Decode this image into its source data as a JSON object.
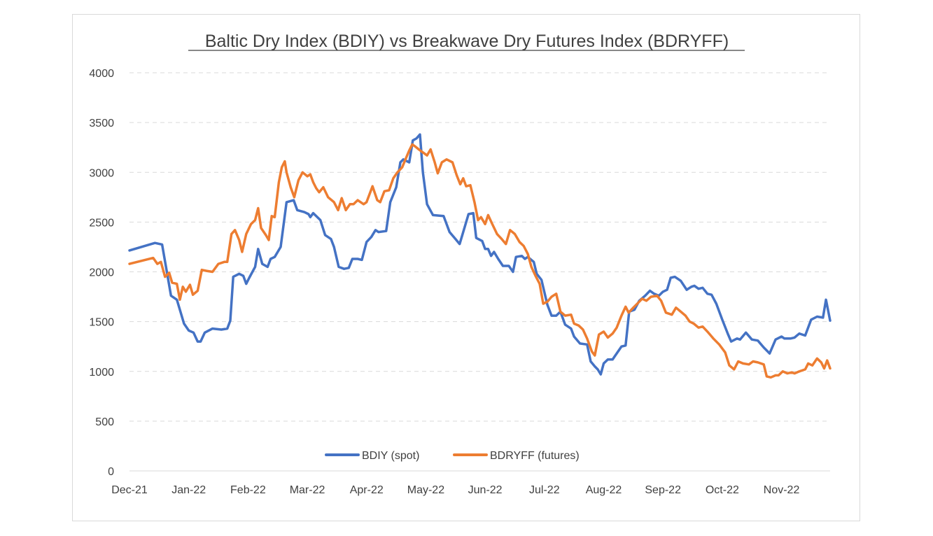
{
  "chart_data": {
    "type": "line",
    "title": "Baltic Dry Index (BDIY) vs Breakwave Dry Futures Index (BDRYFF)",
    "xlabel": "",
    "ylabel": "",
    "ylim": [
      0,
      4000
    ],
    "yticks": [
      0,
      500,
      1000,
      1500,
      2000,
      2500,
      3000,
      3500,
      4000
    ],
    "xtick_labels": [
      "Dec-21",
      "Jan-22",
      "Feb-22",
      "Mar-22",
      "Apr-22",
      "May-22",
      "Jun-22",
      "Jul-22",
      "Aug-22",
      "Sep-22",
      "Oct-22",
      "Nov-22"
    ],
    "x_unit": "months since Dec-21",
    "grid": "horizontal dashed",
    "legend": "bottom-center",
    "series": [
      {
        "name": "BDIY (spot)",
        "color": "#4472c4",
        "points": [
          [
            0.0,
            2215
          ],
          [
            0.43,
            2290
          ],
          [
            0.55,
            2275
          ],
          [
            0.7,
            1760
          ],
          [
            0.8,
            1720
          ],
          [
            0.92,
            1480
          ],
          [
            1.0,
            1410
          ],
          [
            1.08,
            1390
          ],
          [
            1.15,
            1300
          ],
          [
            1.2,
            1300
          ],
          [
            1.27,
            1390
          ],
          [
            1.4,
            1430
          ],
          [
            1.55,
            1420
          ],
          [
            1.65,
            1430
          ],
          [
            1.7,
            1510
          ],
          [
            1.75,
            1950
          ],
          [
            1.85,
            1980
          ],
          [
            1.92,
            1960
          ],
          [
            1.97,
            1880
          ],
          [
            2.02,
            1940
          ],
          [
            2.12,
            2050
          ],
          [
            2.17,
            2230
          ],
          [
            2.24,
            2080
          ],
          [
            2.33,
            2050
          ],
          [
            2.38,
            2130
          ],
          [
            2.45,
            2150
          ],
          [
            2.55,
            2250
          ],
          [
            2.65,
            2700
          ],
          [
            2.77,
            2720
          ],
          [
            2.83,
            2620
          ],
          [
            2.95,
            2600
          ],
          [
            3.02,
            2580
          ],
          [
            3.05,
            2550
          ],
          [
            3.1,
            2590
          ],
          [
            3.22,
            2520
          ],
          [
            3.3,
            2370
          ],
          [
            3.4,
            2330
          ],
          [
            3.45,
            2250
          ],
          [
            3.53,
            2050
          ],
          [
            3.62,
            2030
          ],
          [
            3.7,
            2040
          ],
          [
            3.76,
            2130
          ],
          [
            3.85,
            2130
          ],
          [
            3.92,
            2120
          ],
          [
            4.0,
            2300
          ],
          [
            4.08,
            2350
          ],
          [
            4.15,
            2420
          ],
          [
            4.2,
            2400
          ],
          [
            4.33,
            2410
          ],
          [
            4.4,
            2700
          ],
          [
            4.5,
            2850
          ],
          [
            4.57,
            3100
          ],
          [
            4.62,
            3130
          ],
          [
            4.72,
            3100
          ],
          [
            4.78,
            3320
          ],
          [
            4.84,
            3340
          ],
          [
            4.9,
            3380
          ],
          [
            4.95,
            3000
          ],
          [
            5.02,
            2680
          ],
          [
            5.12,
            2570
          ],
          [
            5.3,
            2560
          ],
          [
            5.4,
            2400
          ],
          [
            5.5,
            2330
          ],
          [
            5.57,
            2280
          ],
          [
            5.63,
            2400
          ],
          [
            5.72,
            2580
          ],
          [
            5.8,
            2590
          ],
          [
            5.85,
            2340
          ],
          [
            5.95,
            2310
          ],
          [
            6.0,
            2230
          ],
          [
            6.05,
            2230
          ],
          [
            6.1,
            2160
          ],
          [
            6.15,
            2200
          ],
          [
            6.22,
            2130
          ],
          [
            6.3,
            2060
          ],
          [
            6.4,
            2060
          ],
          [
            6.47,
            2000
          ],
          [
            6.52,
            2150
          ],
          [
            6.62,
            2160
          ],
          [
            6.67,
            2130
          ],
          [
            6.72,
            2150
          ],
          [
            6.82,
            2100
          ],
          [
            6.87,
            1980
          ],
          [
            6.95,
            1920
          ],
          [
            7.05,
            1670
          ],
          [
            7.12,
            1560
          ],
          [
            7.2,
            1560
          ],
          [
            7.27,
            1600
          ],
          [
            7.35,
            1470
          ],
          [
            7.45,
            1430
          ],
          [
            7.5,
            1350
          ],
          [
            7.6,
            1280
          ],
          [
            7.72,
            1270
          ],
          [
            7.78,
            1100
          ],
          [
            7.85,
            1050
          ],
          [
            7.9,
            1020
          ],
          [
            7.95,
            970
          ],
          [
            8.0,
            1080
          ],
          [
            8.07,
            1120
          ],
          [
            8.15,
            1120
          ],
          [
            8.22,
            1180
          ],
          [
            8.3,
            1250
          ],
          [
            8.37,
            1260
          ],
          [
            8.43,
            1600
          ],
          [
            8.52,
            1620
          ],
          [
            8.6,
            1710
          ],
          [
            8.7,
            1760
          ],
          [
            8.78,
            1810
          ],
          [
            8.85,
            1780
          ],
          [
            8.93,
            1760
          ],
          [
            9.0,
            1800
          ],
          [
            9.07,
            1820
          ],
          [
            9.13,
            1940
          ],
          [
            9.2,
            1950
          ],
          [
            9.3,
            1910
          ],
          [
            9.4,
            1820
          ],
          [
            9.48,
            1850
          ],
          [
            9.53,
            1860
          ],
          [
            9.6,
            1830
          ],
          [
            9.67,
            1840
          ],
          [
            9.75,
            1780
          ],
          [
            9.82,
            1770
          ],
          [
            9.9,
            1680
          ],
          [
            10.0,
            1520
          ],
          [
            10.1,
            1370
          ],
          [
            10.15,
            1300
          ],
          [
            10.25,
            1330
          ],
          [
            10.3,
            1320
          ],
          [
            10.4,
            1390
          ],
          [
            10.5,
            1320
          ],
          [
            10.6,
            1310
          ],
          [
            10.7,
            1240
          ],
          [
            10.8,
            1180
          ],
          [
            10.9,
            1320
          ],
          [
            11.0,
            1350
          ],
          [
            11.05,
            1330
          ],
          [
            11.15,
            1330
          ],
          [
            11.22,
            1340
          ],
          [
            11.3,
            1380
          ],
          [
            11.4,
            1360
          ],
          [
            11.5,
            1520
          ],
          [
            11.6,
            1550
          ],
          [
            11.7,
            1540
          ],
          [
            11.75,
            1720
          ],
          [
            11.82,
            1510
          ]
        ]
      },
      {
        "name": "BDRYFF (futures)",
        "color": "#ed7d31",
        "points": [
          [
            0.0,
            2080
          ],
          [
            0.4,
            2140
          ],
          [
            0.47,
            2080
          ],
          [
            0.53,
            2100
          ],
          [
            0.6,
            1950
          ],
          [
            0.67,
            1990
          ],
          [
            0.72,
            1890
          ],
          [
            0.8,
            1880
          ],
          [
            0.85,
            1720
          ],
          [
            0.9,
            1850
          ],
          [
            0.95,
            1800
          ],
          [
            1.02,
            1870
          ],
          [
            1.07,
            1770
          ],
          [
            1.15,
            1810
          ],
          [
            1.22,
            2020
          ],
          [
            1.3,
            2010
          ],
          [
            1.4,
            2000
          ],
          [
            1.5,
            2080
          ],
          [
            1.6,
            2100
          ],
          [
            1.65,
            2100
          ],
          [
            1.72,
            2380
          ],
          [
            1.78,
            2420
          ],
          [
            1.85,
            2320
          ],
          [
            1.9,
            2200
          ],
          [
            1.97,
            2380
          ],
          [
            2.05,
            2480
          ],
          [
            2.12,
            2520
          ],
          [
            2.17,
            2640
          ],
          [
            2.22,
            2440
          ],
          [
            2.3,
            2370
          ],
          [
            2.35,
            2320
          ],
          [
            2.4,
            2560
          ],
          [
            2.45,
            2550
          ],
          [
            2.52,
            2900
          ],
          [
            2.57,
            3050
          ],
          [
            2.62,
            3110
          ],
          [
            2.65,
            3000
          ],
          [
            2.72,
            2850
          ],
          [
            2.78,
            2750
          ],
          [
            2.85,
            2920
          ],
          [
            2.92,
            3000
          ],
          [
            3.0,
            2960
          ],
          [
            3.05,
            2980
          ],
          [
            3.1,
            2900
          ],
          [
            3.15,
            2840
          ],
          [
            3.2,
            2800
          ],
          [
            3.27,
            2850
          ],
          [
            3.35,
            2750
          ],
          [
            3.45,
            2700
          ],
          [
            3.52,
            2620
          ],
          [
            3.58,
            2740
          ],
          [
            3.65,
            2620
          ],
          [
            3.72,
            2680
          ],
          [
            3.78,
            2680
          ],
          [
            3.85,
            2720
          ],
          [
            3.95,
            2680
          ],
          [
            4.0,
            2700
          ],
          [
            4.1,
            2860
          ],
          [
            4.18,
            2720
          ],
          [
            4.23,
            2700
          ],
          [
            4.3,
            2810
          ],
          [
            4.38,
            2820
          ],
          [
            4.45,
            2940
          ],
          [
            4.52,
            3000
          ],
          [
            4.6,
            3050
          ],
          [
            4.67,
            3150
          ],
          [
            4.72,
            3220
          ],
          [
            4.77,
            3280
          ],
          [
            4.82,
            3260
          ],
          [
            4.88,
            3230
          ],
          [
            4.95,
            3200
          ],
          [
            5.02,
            3170
          ],
          [
            5.08,
            3230
          ],
          [
            5.15,
            3100
          ],
          [
            5.2,
            2990
          ],
          [
            5.27,
            3100
          ],
          [
            5.35,
            3130
          ],
          [
            5.45,
            3100
          ],
          [
            5.52,
            2970
          ],
          [
            5.58,
            2880
          ],
          [
            5.63,
            2940
          ],
          [
            5.68,
            2860
          ],
          [
            5.75,
            2870
          ],
          [
            5.82,
            2700
          ],
          [
            5.88,
            2520
          ],
          [
            5.93,
            2550
          ],
          [
            6.0,
            2480
          ],
          [
            6.05,
            2570
          ],
          [
            6.12,
            2480
          ],
          [
            6.2,
            2380
          ],
          [
            6.28,
            2330
          ],
          [
            6.35,
            2280
          ],
          [
            6.42,
            2420
          ],
          [
            6.5,
            2380
          ],
          [
            6.58,
            2300
          ],
          [
            6.65,
            2260
          ],
          [
            6.72,
            2180
          ],
          [
            6.78,
            2050
          ],
          [
            6.85,
            1960
          ],
          [
            6.92,
            1880
          ],
          [
            6.98,
            1680
          ],
          [
            7.05,
            1700
          ],
          [
            7.12,
            1750
          ],
          [
            7.2,
            1780
          ],
          [
            7.27,
            1600
          ],
          [
            7.35,
            1560
          ],
          [
            7.45,
            1570
          ],
          [
            7.5,
            1480
          ],
          [
            7.58,
            1460
          ],
          [
            7.65,
            1420
          ],
          [
            7.72,
            1330
          ],
          [
            7.8,
            1200
          ],
          [
            7.85,
            1160
          ],
          [
            7.92,
            1370
          ],
          [
            8.0,
            1400
          ],
          [
            8.07,
            1340
          ],
          [
            8.15,
            1380
          ],
          [
            8.22,
            1440
          ],
          [
            8.3,
            1560
          ],
          [
            8.37,
            1650
          ],
          [
            8.42,
            1590
          ],
          [
            8.5,
            1640
          ],
          [
            8.6,
            1700
          ],
          [
            8.65,
            1730
          ],
          [
            8.72,
            1710
          ],
          [
            8.8,
            1750
          ],
          [
            8.9,
            1760
          ],
          [
            8.97,
            1710
          ],
          [
            9.05,
            1590
          ],
          [
            9.15,
            1570
          ],
          [
            9.22,
            1640
          ],
          [
            9.3,
            1600
          ],
          [
            9.38,
            1560
          ],
          [
            9.45,
            1500
          ],
          [
            9.52,
            1480
          ],
          [
            9.6,
            1440
          ],
          [
            9.67,
            1450
          ],
          [
            9.75,
            1400
          ],
          [
            9.85,
            1330
          ],
          [
            9.95,
            1270
          ],
          [
            10.05,
            1190
          ],
          [
            10.12,
            1060
          ],
          [
            10.2,
            1020
          ],
          [
            10.27,
            1100
          ],
          [
            10.35,
            1080
          ],
          [
            10.45,
            1070
          ],
          [
            10.52,
            1100
          ],
          [
            10.6,
            1090
          ],
          [
            10.7,
            1070
          ],
          [
            10.75,
            950
          ],
          [
            10.82,
            940
          ],
          [
            10.9,
            960
          ],
          [
            10.95,
            960
          ],
          [
            11.02,
            1000
          ],
          [
            11.1,
            980
          ],
          [
            11.17,
            990
          ],
          [
            11.22,
            980
          ],
          [
            11.3,
            1000
          ],
          [
            11.4,
            1020
          ],
          [
            11.45,
            1080
          ],
          [
            11.52,
            1060
          ],
          [
            11.6,
            1130
          ],
          [
            11.67,
            1090
          ],
          [
            11.72,
            1030
          ],
          [
            11.77,
            1110
          ],
          [
            11.82,
            1030
          ]
        ]
      }
    ]
  }
}
